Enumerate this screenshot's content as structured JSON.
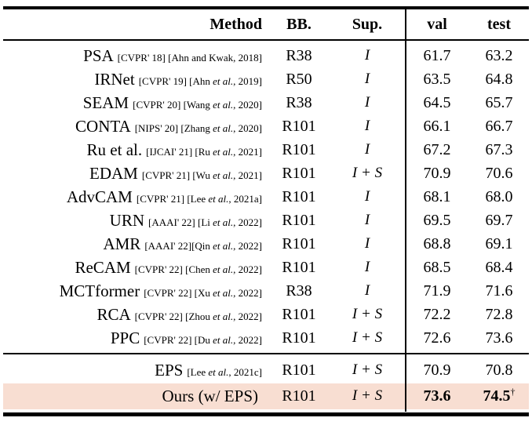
{
  "table": {
    "title_semantic": "Weakly-supervised semantic segmentation results (mIoU) on VOC val and test sets",
    "header": {
      "method": "Method",
      "bb": "BB.",
      "sup": "Sup.",
      "val": "val",
      "test": "test"
    },
    "colors": {
      "highlight_bg": "#f8ded2",
      "rule": "#000000",
      "background": "#ffffff",
      "text": "#000000"
    },
    "sections": [
      {
        "rows": [
          {
            "name": "PSA",
            "cite": "[CVPR' 18] [Ahn and Kwak, 2018]",
            "bb": "R38",
            "sup": "I",
            "val": "61.7",
            "test": "63.2"
          },
          {
            "name": "IRNet",
            "cite": "[CVPR' 19] [Ahn *et al.*, 2019]",
            "bb": "R50",
            "sup": "I",
            "val": "63.5",
            "test": "64.8"
          },
          {
            "name": "SEAM",
            "cite": "[CVPR' 20] [Wang *et al.*, 2020]",
            "bb": "R38",
            "sup": "I",
            "val": "64.5",
            "test": "65.7"
          },
          {
            "name": "CONTA",
            "cite": "[NIPS' 20] [Zhang *et al.*, 2020]",
            "bb": "R101",
            "sup": "I",
            "val": "66.1",
            "test": "66.7"
          },
          {
            "name": "Ru et al.",
            "cite": "[IJCAI' 21] [Ru *et al.*, 2021]",
            "bb": "R101",
            "sup": "I",
            "val": "67.2",
            "test": "67.3"
          },
          {
            "name": "EDAM",
            "cite": "[CVPR' 21] [Wu *et al.*, 2021]",
            "bb": "R101",
            "sup": "I + S",
            "val": "70.9",
            "test": "70.6"
          },
          {
            "name": "AdvCAM",
            "cite": "[CVPR' 21] [Lee *et al.*, 2021a]",
            "bb": "R101",
            "sup": "I",
            "val": "68.1",
            "test": "68.0"
          },
          {
            "name": "URN",
            "cite": "[AAAI' 22] [Li *et al.*, 2022]",
            "bb": "R101",
            "sup": "I",
            "val": "69.5",
            "test": "69.7"
          },
          {
            "name": "AMR",
            "cite": "[AAAI' 22][Qin *et al.*, 2022]",
            "bb": "R101",
            "sup": "I",
            "val": "68.8",
            "test": "69.1"
          },
          {
            "name": "ReCAM",
            "cite": "[CVPR' 22] [Chen *et al.*, 2022]",
            "bb": "R101",
            "sup": "I",
            "val": "68.5",
            "test": "68.4"
          },
          {
            "name": "MCTformer",
            "cite": "[CVPR' 22] [Xu *et al.*, 2022]",
            "bb": "R38",
            "sup": "I",
            "val": "71.9",
            "test": "71.6"
          },
          {
            "name": "RCA",
            "cite": "[CVPR' 22] [Zhou *et al.*, 2022]",
            "bb": "R101",
            "sup": "I + S",
            "val": "72.2",
            "test": "72.8"
          },
          {
            "name": "PPC",
            "cite": "[CVPR' 22] [Du *et al.*, 2022]",
            "bb": "R101",
            "sup": "I + S",
            "val": "72.6",
            "test": "73.6"
          }
        ]
      },
      {
        "rows": [
          {
            "name": "EPS",
            "cite": "[Lee *et al.*, 2021c]",
            "bb": "R101",
            "sup": "I + S",
            "val": "70.9",
            "test": "70.8"
          },
          {
            "name": "Ours (w/ EPS)",
            "cite": "",
            "bb": "R101",
            "sup": "I + S",
            "val": "73.6",
            "test": "74.5",
            "test_sup": "†",
            "bold": true,
            "highlight": true
          }
        ]
      }
    ]
  }
}
